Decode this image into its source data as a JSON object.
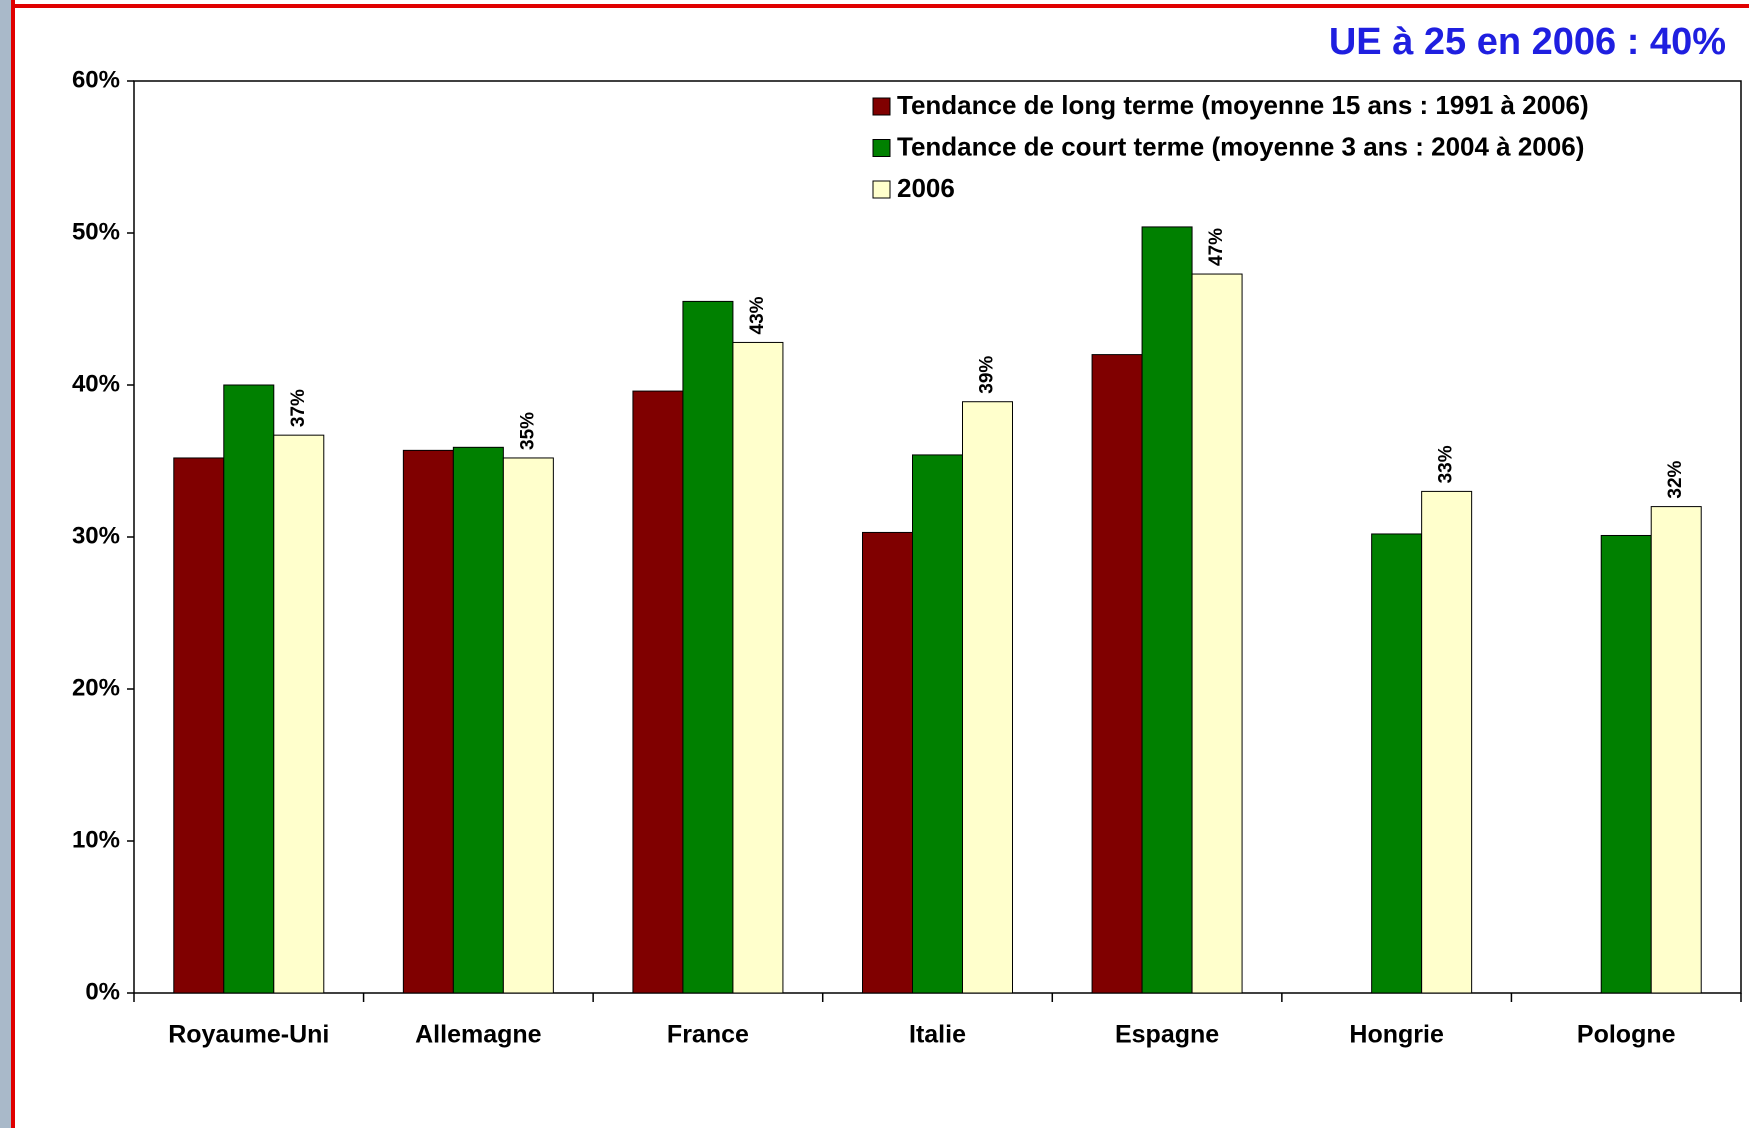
{
  "chart_data": {
    "type": "bar",
    "annotation": "UE à 25 en 2006 : 40%",
    "categories": [
      "Royaume-Uni",
      "Allemagne",
      "France",
      "Italie",
      "Espagne",
      "Hongrie",
      "Pologne"
    ],
    "series": [
      {
        "name": "Tendance de long terme (moyenne 15 ans : 1991 à 2006)",
        "color": "#800000",
        "values": [
          35.2,
          35.7,
          39.6,
          30.3,
          42.0,
          null,
          null
        ]
      },
      {
        "name": "Tendance de court terme (moyenne 3 ans : 2004 à 2006)",
        "color": "#008000",
        "values": [
          40.0,
          35.9,
          45.5,
          35.4,
          50.4,
          30.2,
          30.1
        ]
      },
      {
        "name": "2006",
        "color": "#ffffcc",
        "values": [
          36.7,
          35.2,
          42.8,
          38.9,
          47.3,
          33.0,
          32.0
        ],
        "value_labels": [
          "37%",
          "35%",
          "43%",
          "39%",
          "47%",
          "33%",
          "32%"
        ]
      }
    ],
    "ylim": [
      0,
      60
    ],
    "yticks": [
      {
        "value": 0,
        "label": "0%"
      },
      {
        "value": 10,
        "label": "10%"
      },
      {
        "value": 20,
        "label": "20%"
      },
      {
        "value": 30,
        "label": "30%"
      },
      {
        "value": 40,
        "label": "40%"
      },
      {
        "value": 50,
        "label": "50%"
      },
      {
        "value": 60,
        "label": "60%"
      }
    ]
  }
}
